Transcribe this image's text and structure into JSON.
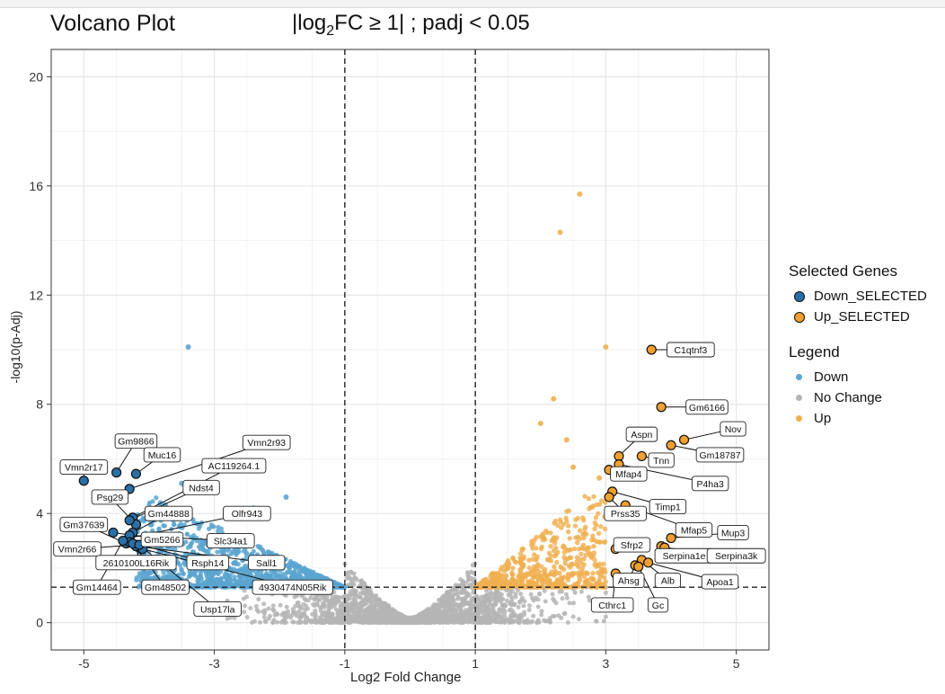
{
  "chart_data": {
    "type": "scatter",
    "title": "Volcano Plot",
    "subtitle_parts": [
      "|log",
      "2",
      "FC ≥ 1| ; padj < 0.05"
    ],
    "xlabel": "Log2 Fold Change",
    "ylabel": "-log10(p-Adj)",
    "xlim": [
      -5.5,
      5.5
    ],
    "ylim": [
      -1,
      21
    ],
    "x_ticks": [
      -5,
      -3,
      -1,
      1,
      3,
      5
    ],
    "y_ticks": [
      0,
      4,
      8,
      12,
      16,
      20
    ],
    "grid": true,
    "thresholds": {
      "x": [
        -1,
        1
      ],
      "y": 1.3
    },
    "legend_placement": "right",
    "colors": {
      "Down": "#5ba5d0",
      "No Change": "#b5b5b5",
      "Up": "#f0b050",
      "Down_SELECTED": "#2a6fa6",
      "Up_SELECTED": "#f0a030"
    },
    "legend": {
      "selected_title": "Selected Genes",
      "selected_items": [
        "Down_SELECTED",
        "Up_SELECTED"
      ],
      "legend_title": "Legend",
      "legend_items": [
        "Down",
        "No Change",
        "Up"
      ]
    },
    "outlier_points": [
      {
        "x": -3.4,
        "y": 10.1,
        "group": "Down"
      },
      {
        "x": 2.6,
        "y": 15.7,
        "group": "Up"
      },
      {
        "x": 2.3,
        "y": 14.3,
        "group": "Up"
      },
      {
        "x": 3.0,
        "y": 10.1,
        "group": "Up"
      },
      {
        "x": 2.2,
        "y": 8.2,
        "group": "Up"
      },
      {
        "x": 2.0,
        "y": 7.3,
        "group": "Up"
      },
      {
        "x": 2.4,
        "y": 6.7,
        "group": "Up"
      },
      {
        "x": 2.5,
        "y": 5.7,
        "group": "Up"
      },
      {
        "x": 2.9,
        "y": 5.3,
        "group": "Up"
      },
      {
        "x": -3.5,
        "y": 5.1,
        "group": "Down"
      },
      {
        "x": -3.2,
        "y": 4.9,
        "group": "Down"
      },
      {
        "x": -1.9,
        "y": 4.6,
        "group": "Down"
      },
      {
        "x": -2.4,
        "y": 4.2,
        "group": "Down"
      }
    ],
    "down_selected": [
      {
        "x": -5.0,
        "y": 5.2,
        "label": "Vmn2r17"
      },
      {
        "x": -4.5,
        "y": 5.5,
        "label": "Gm9866"
      },
      {
        "x": -4.2,
        "y": 5.45,
        "label": "Muc16"
      },
      {
        "x": -4.3,
        "y": 4.9,
        "label": "Vmn2r93"
      },
      {
        "x": -4.25,
        "y": 3.85,
        "label": "AC119264.1"
      },
      {
        "x": -4.2,
        "y": 3.6,
        "label": "Psg29"
      },
      {
        "x": -4.3,
        "y": 3.75,
        "label": "Ndst4"
      },
      {
        "x": -4.25,
        "y": 3.3,
        "label": "Gm44888"
      },
      {
        "x": -4.3,
        "y": 3.1,
        "label": "Olfr943"
      },
      {
        "x": -4.35,
        "y": 2.9,
        "label": "Gm37639"
      },
      {
        "x": -4.55,
        "y": 3.3,
        "label": "Gm5266"
      },
      {
        "x": -4.3,
        "y": 3.2,
        "label": "Slc34a1"
      },
      {
        "x": -4.2,
        "y": 2.85,
        "label": "Vmn2r66"
      },
      {
        "x": -4.15,
        "y": 2.75,
        "label": "2610100L16Rik"
      },
      {
        "x": -4.3,
        "y": 2.95,
        "label": "Rsph14"
      },
      {
        "x": -4.2,
        "y": 2.8,
        "label": "Sall1"
      },
      {
        "x": -4.1,
        "y": 2.7,
        "label": "4930474N05Rik"
      },
      {
        "x": -4.4,
        "y": 3.0,
        "label": "Gm14464"
      },
      {
        "x": -4.25,
        "y": 2.9,
        "label": "Gm48502"
      },
      {
        "x": -4.15,
        "y": 2.85,
        "label": "Usp17la"
      }
    ],
    "up_selected": [
      {
        "x": 3.7,
        "y": 10.0,
        "label": "C1qtnf3"
      },
      {
        "x": 3.85,
        "y": 7.9,
        "label": "Gm6166"
      },
      {
        "x": 4.2,
        "y": 6.7,
        "label": "Nov"
      },
      {
        "x": 3.2,
        "y": 6.1,
        "label": "Aspn"
      },
      {
        "x": 4.0,
        "y": 6.5,
        "label": "Gm18787"
      },
      {
        "x": 3.55,
        "y": 6.1,
        "label": "Tnn"
      },
      {
        "x": 3.2,
        "y": 5.8,
        "label": "P4ha3"
      },
      {
        "x": 3.05,
        "y": 5.6,
        "label": "Mfap4"
      },
      {
        "x": 3.1,
        "y": 4.8,
        "label": "Timp1"
      },
      {
        "x": 3.05,
        "y": 4.6,
        "label": "Prss35"
      },
      {
        "x": 3.3,
        "y": 4.3,
        "label": "Mfap5"
      },
      {
        "x": 4.0,
        "y": 3.1,
        "label": "Mup3"
      },
      {
        "x": 3.15,
        "y": 2.7,
        "label": "Sfrp2"
      },
      {
        "x": 3.85,
        "y": 2.8,
        "label": "Serpina1e"
      },
      {
        "x": 3.9,
        "y": 2.75,
        "label": "Serpina3k"
      },
      {
        "x": 3.55,
        "y": 2.3,
        "label": "Alb"
      },
      {
        "x": 3.65,
        "y": 2.2,
        "label": "Apoa1"
      },
      {
        "x": 3.45,
        "y": 2.1,
        "label": "Ahsg"
      },
      {
        "x": 3.15,
        "y": 1.8,
        "label": "Cthrc1"
      },
      {
        "x": 3.5,
        "y": 2.05,
        "label": "Gc"
      }
    ]
  }
}
